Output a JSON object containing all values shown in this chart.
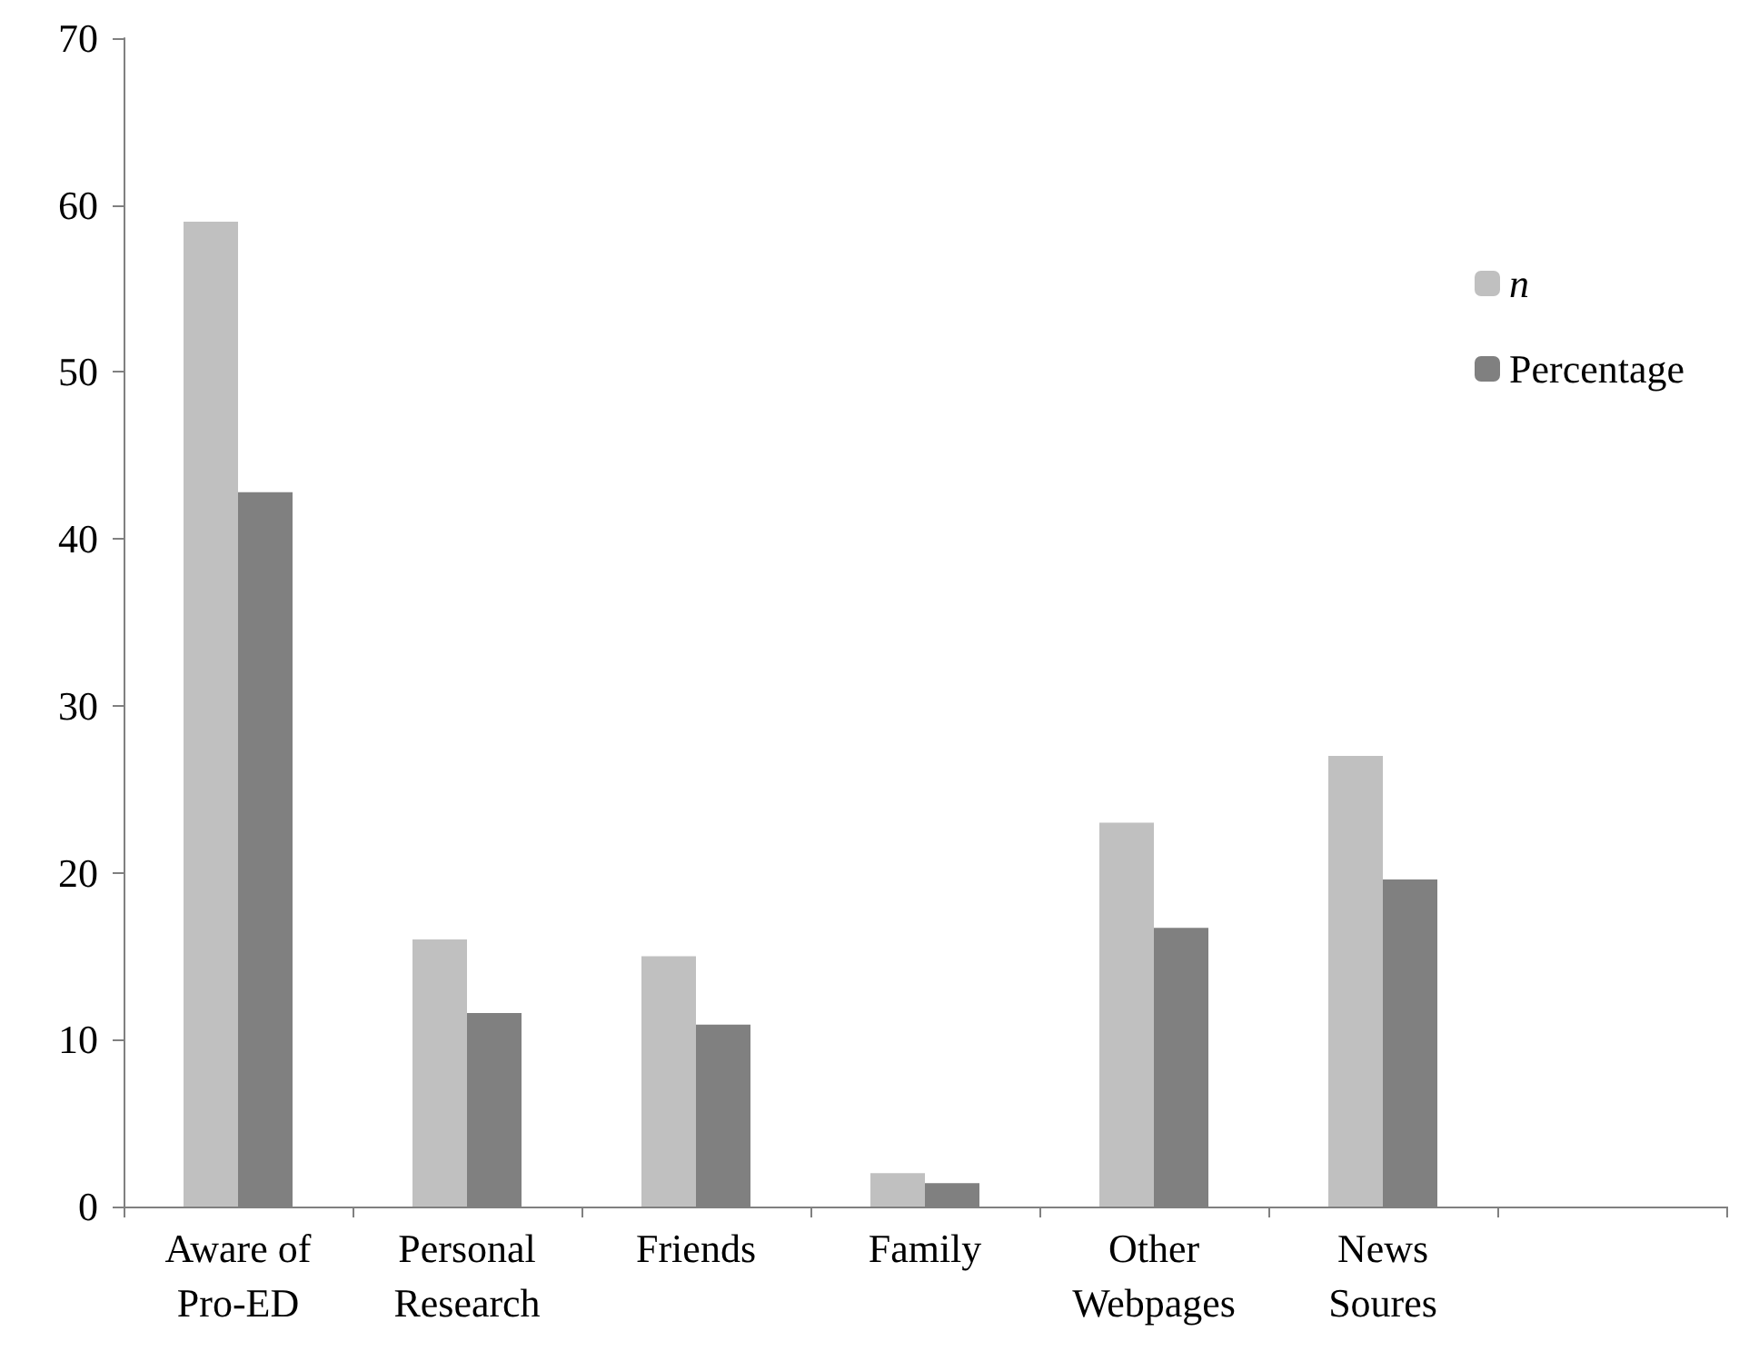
{
  "chart_data": {
    "type": "bar",
    "categories": [
      "Aware of Pro-ED",
      "Personal Research",
      "Friends",
      "Family",
      "Other Webpages",
      "News Soures",
      null
    ],
    "series": [
      {
        "name": "n",
        "color": "#c0c0c0",
        "values": [
          59,
          16,
          15,
          2,
          23,
          27,
          null
        ]
      },
      {
        "name": "Percentage",
        "color": "#808080",
        "values": [
          42.8,
          11.6,
          10.9,
          1.4,
          16.7,
          19.6,
          null
        ]
      }
    ],
    "ylim": [
      0,
      70
    ],
    "yticks": [
      0,
      10,
      20,
      30,
      40,
      50,
      60,
      70
    ],
    "grid": false,
    "legend": "right"
  }
}
